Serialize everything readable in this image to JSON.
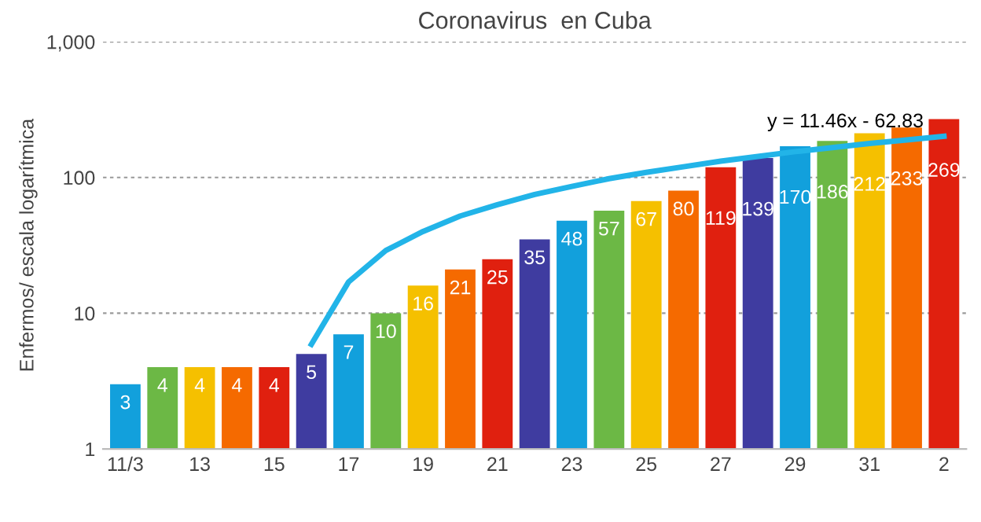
{
  "chart_data": {
    "type": "bar",
    "title": "Coronavirus  en Cuba",
    "ylabel": "Enfermos/ escala logarítmica",
    "categories": [
      "11/3",
      null,
      "13",
      null,
      "15",
      null,
      "17",
      null,
      "19",
      null,
      "21",
      null,
      "23",
      null,
      "25",
      null,
      "27",
      null,
      "29",
      null,
      "31",
      null,
      "2"
    ],
    "series": [
      {
        "values": [
          3,
          4,
          4,
          4,
          4,
          5,
          7,
          10,
          16,
          21,
          25,
          35,
          48,
          57,
          67,
          80,
          119,
          139,
          170,
          186,
          212,
          233,
          269
        ],
        "value_labels": [
          "3",
          "4",
          "4",
          "4",
          "4",
          "5",
          "7",
          "10",
          "16",
          "21",
          "25",
          "35",
          "48",
          "57",
          "67",
          "80",
          "119",
          "139",
          "170",
          "186",
          "212",
          "233",
          "269"
        ],
        "colors": [
          "#12a0dc",
          "#6cb845",
          "#f5c000",
          "#f56a00",
          "#e0200f",
          "#3f3ca0",
          "#12a0dc",
          "#6cb845",
          "#f5c000",
          "#f56a00",
          "#e0200f",
          "#3f3ca0",
          "#12a0dc",
          "#6cb845",
          "#f5c000",
          "#f56a00",
          "#e0200f",
          "#3f3ca0",
          "#12a0dc",
          "#6cb845",
          "#f5c000",
          "#f56a00",
          "#e0200f"
        ]
      },
      {
        "type": "line",
        "color": "#22b4e8",
        "values": [
          null,
          null,
          null,
          null,
          null,
          5.9,
          17,
          29,
          40,
          52,
          63,
          75,
          86,
          98,
          109,
          120,
          132,
          143,
          155,
          166,
          178,
          189,
          201
        ]
      }
    ],
    "log": true,
    "ylim": [
      1,
      1000
    ],
    "yticks": [
      1,
      10,
      100,
      {
        "value": 1000,
        "label": "1,000"
      }
    ],
    "grid": "y",
    "annotations": [
      "y = 11.46x - 62.83"
    ]
  }
}
